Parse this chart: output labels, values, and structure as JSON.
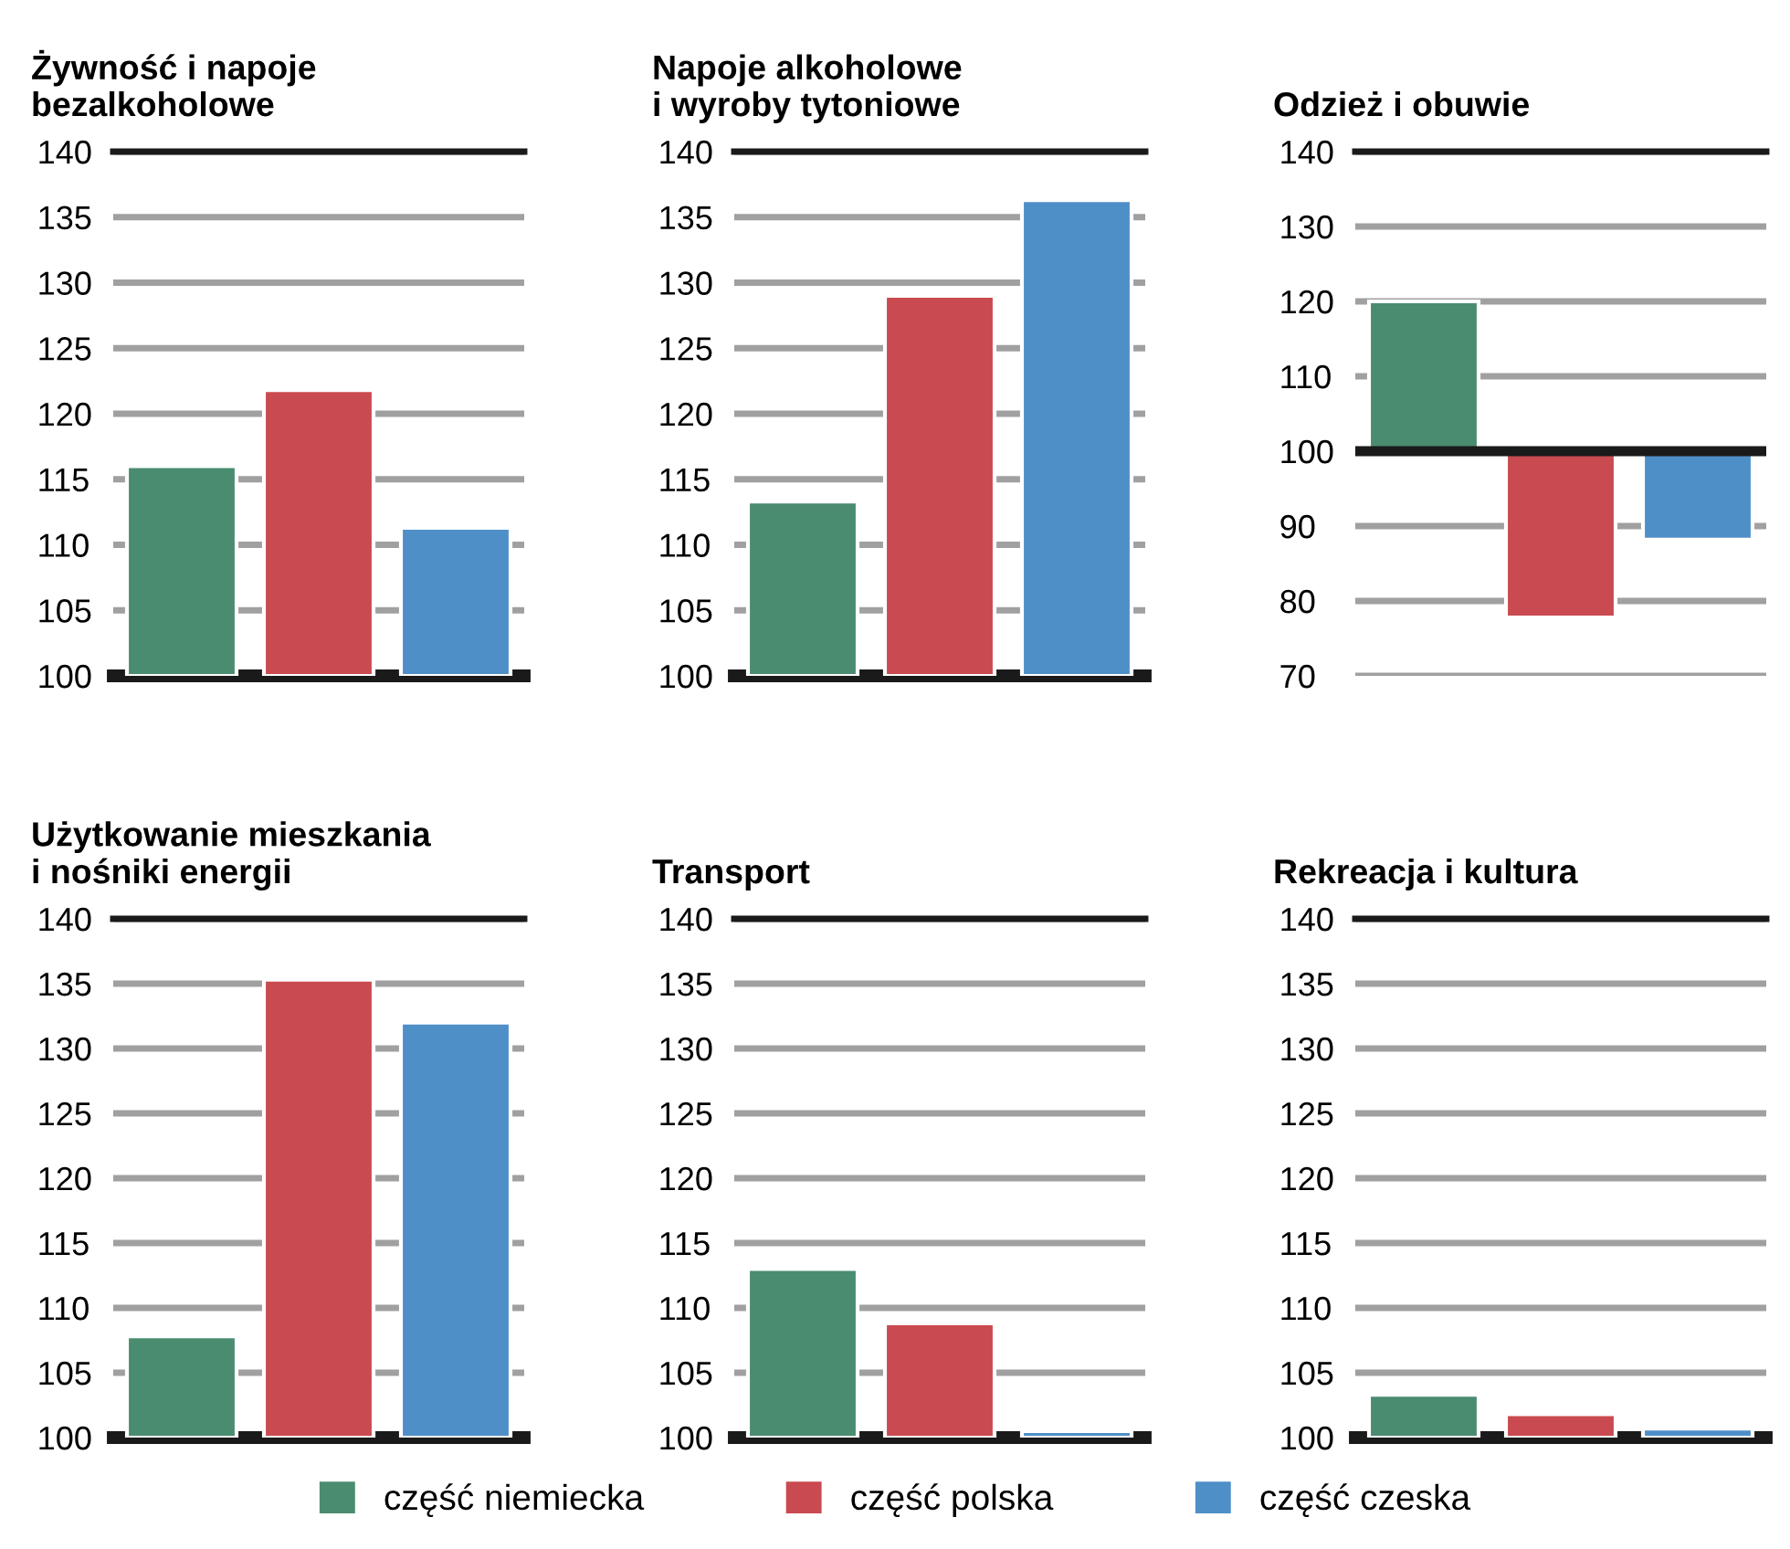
{
  "chart_data": [
    {
      "type": "bar",
      "title": "Żywność i napoje\nbezalkoholowe",
      "categories": [
        null
      ],
      "ylim": [
        100,
        140
      ],
      "yticks": [
        100,
        105,
        110,
        115,
        120,
        125,
        130,
        135,
        140
      ],
      "grid": "y",
      "legend": "bottom",
      "series": [
        {
          "name": "część niemiecka",
          "color": "#4a8c6f",
          "values": [
            16
          ],
          "base": [
            100
          ]
        },
        {
          "name": "część polska",
          "color": "#c94a50",
          "values": [
            21.8
          ],
          "base": [
            100
          ]
        },
        {
          "name": "część czeska",
          "color": "#4f8fc8",
          "values": [
            11.3
          ],
          "base": [
            100
          ]
        }
      ]
    },
    {
      "type": "bar",
      "title": "Napoje alkoholowe\ni wyroby tytoniowe",
      "categories": [
        null
      ],
      "ylim": [
        100,
        140
      ],
      "yticks": [
        100,
        105,
        110,
        115,
        120,
        125,
        130,
        135,
        140
      ],
      "grid": "y",
      "series": [
        {
          "color": "#4a8c6f",
          "values": [
            13.3
          ],
          "base": [
            100
          ]
        },
        {
          "color": "#c94a50",
          "values": [
            29
          ],
          "base": [
            100
          ]
        },
        {
          "color": "#4f8fc8",
          "values": [
            36.3
          ],
          "base": [
            100
          ]
        }
      ]
    },
    {
      "type": "bar",
      "title": "Odzież i obuwie",
      "categories": [
        null
      ],
      "ylim": [
        70,
        140
      ],
      "yticks": [
        70,
        80,
        90,
        100,
        110,
        120,
        130,
        140
      ],
      "grid": "y",
      "ref_lines": [
        {
          "axis": "y",
          "value": 100,
          "color": "#1a1a1a"
        }
      ],
      "series": [
        {
          "color": "#4a8c6f",
          "values": [
            20
          ],
          "base": [
            100
          ]
        },
        {
          "color": "#c94a50",
          "values": [
            -22.2
          ],
          "base": [
            100
          ]
        },
        {
          "color": "#4f8fc8",
          "values": [
            -11.8
          ],
          "base": [
            100
          ]
        }
      ]
    },
    {
      "type": "bar",
      "title": "Użytkowanie mieszkania\ni nośniki energii",
      "categories": [
        null
      ],
      "ylim": [
        100,
        140
      ],
      "yticks": [
        100,
        105,
        110,
        115,
        120,
        125,
        130,
        135,
        140
      ],
      "grid": "y",
      "series": [
        {
          "color": "#4a8c6f",
          "values": [
            7.8
          ],
          "base": [
            100
          ]
        },
        {
          "color": "#c94a50",
          "values": [
            35.3
          ],
          "base": [
            100
          ]
        },
        {
          "color": "#4f8fc8",
          "values": [
            32
          ],
          "base": [
            100
          ]
        }
      ]
    },
    {
      "type": "bar",
      "title": "Transport",
      "categories": [
        null
      ],
      "ylim": [
        100,
        140
      ],
      "yticks": [
        100,
        105,
        110,
        115,
        120,
        125,
        130,
        135,
        140
      ],
      "grid": "y",
      "series": [
        {
          "color": "#4a8c6f",
          "values": [
            13
          ],
          "base": [
            100
          ]
        },
        {
          "color": "#c94a50",
          "values": [
            8.8
          ],
          "base": [
            100
          ]
        },
        {
          "color": "#4f8fc8",
          "values": [
            0.5
          ],
          "base": [
            100
          ]
        }
      ]
    },
    {
      "type": "bar",
      "title": "Rekreacja i kultura",
      "categories": [
        null
      ],
      "ylim": [
        100,
        140
      ],
      "yticks": [
        100,
        105,
        110,
        115,
        120,
        125,
        130,
        135,
        140
      ],
      "grid": "y",
      "series": [
        {
          "color": "#4a8c6f",
          "values": [
            3.3
          ],
          "base": [
            100
          ]
        },
        {
          "color": "#c94a50",
          "values": [
            1.8
          ],
          "base": [
            100
          ]
        },
        {
          "color": "#4f8fc8",
          "values": [
            0.7
          ],
          "base": [
            100
          ]
        }
      ]
    }
  ]
}
